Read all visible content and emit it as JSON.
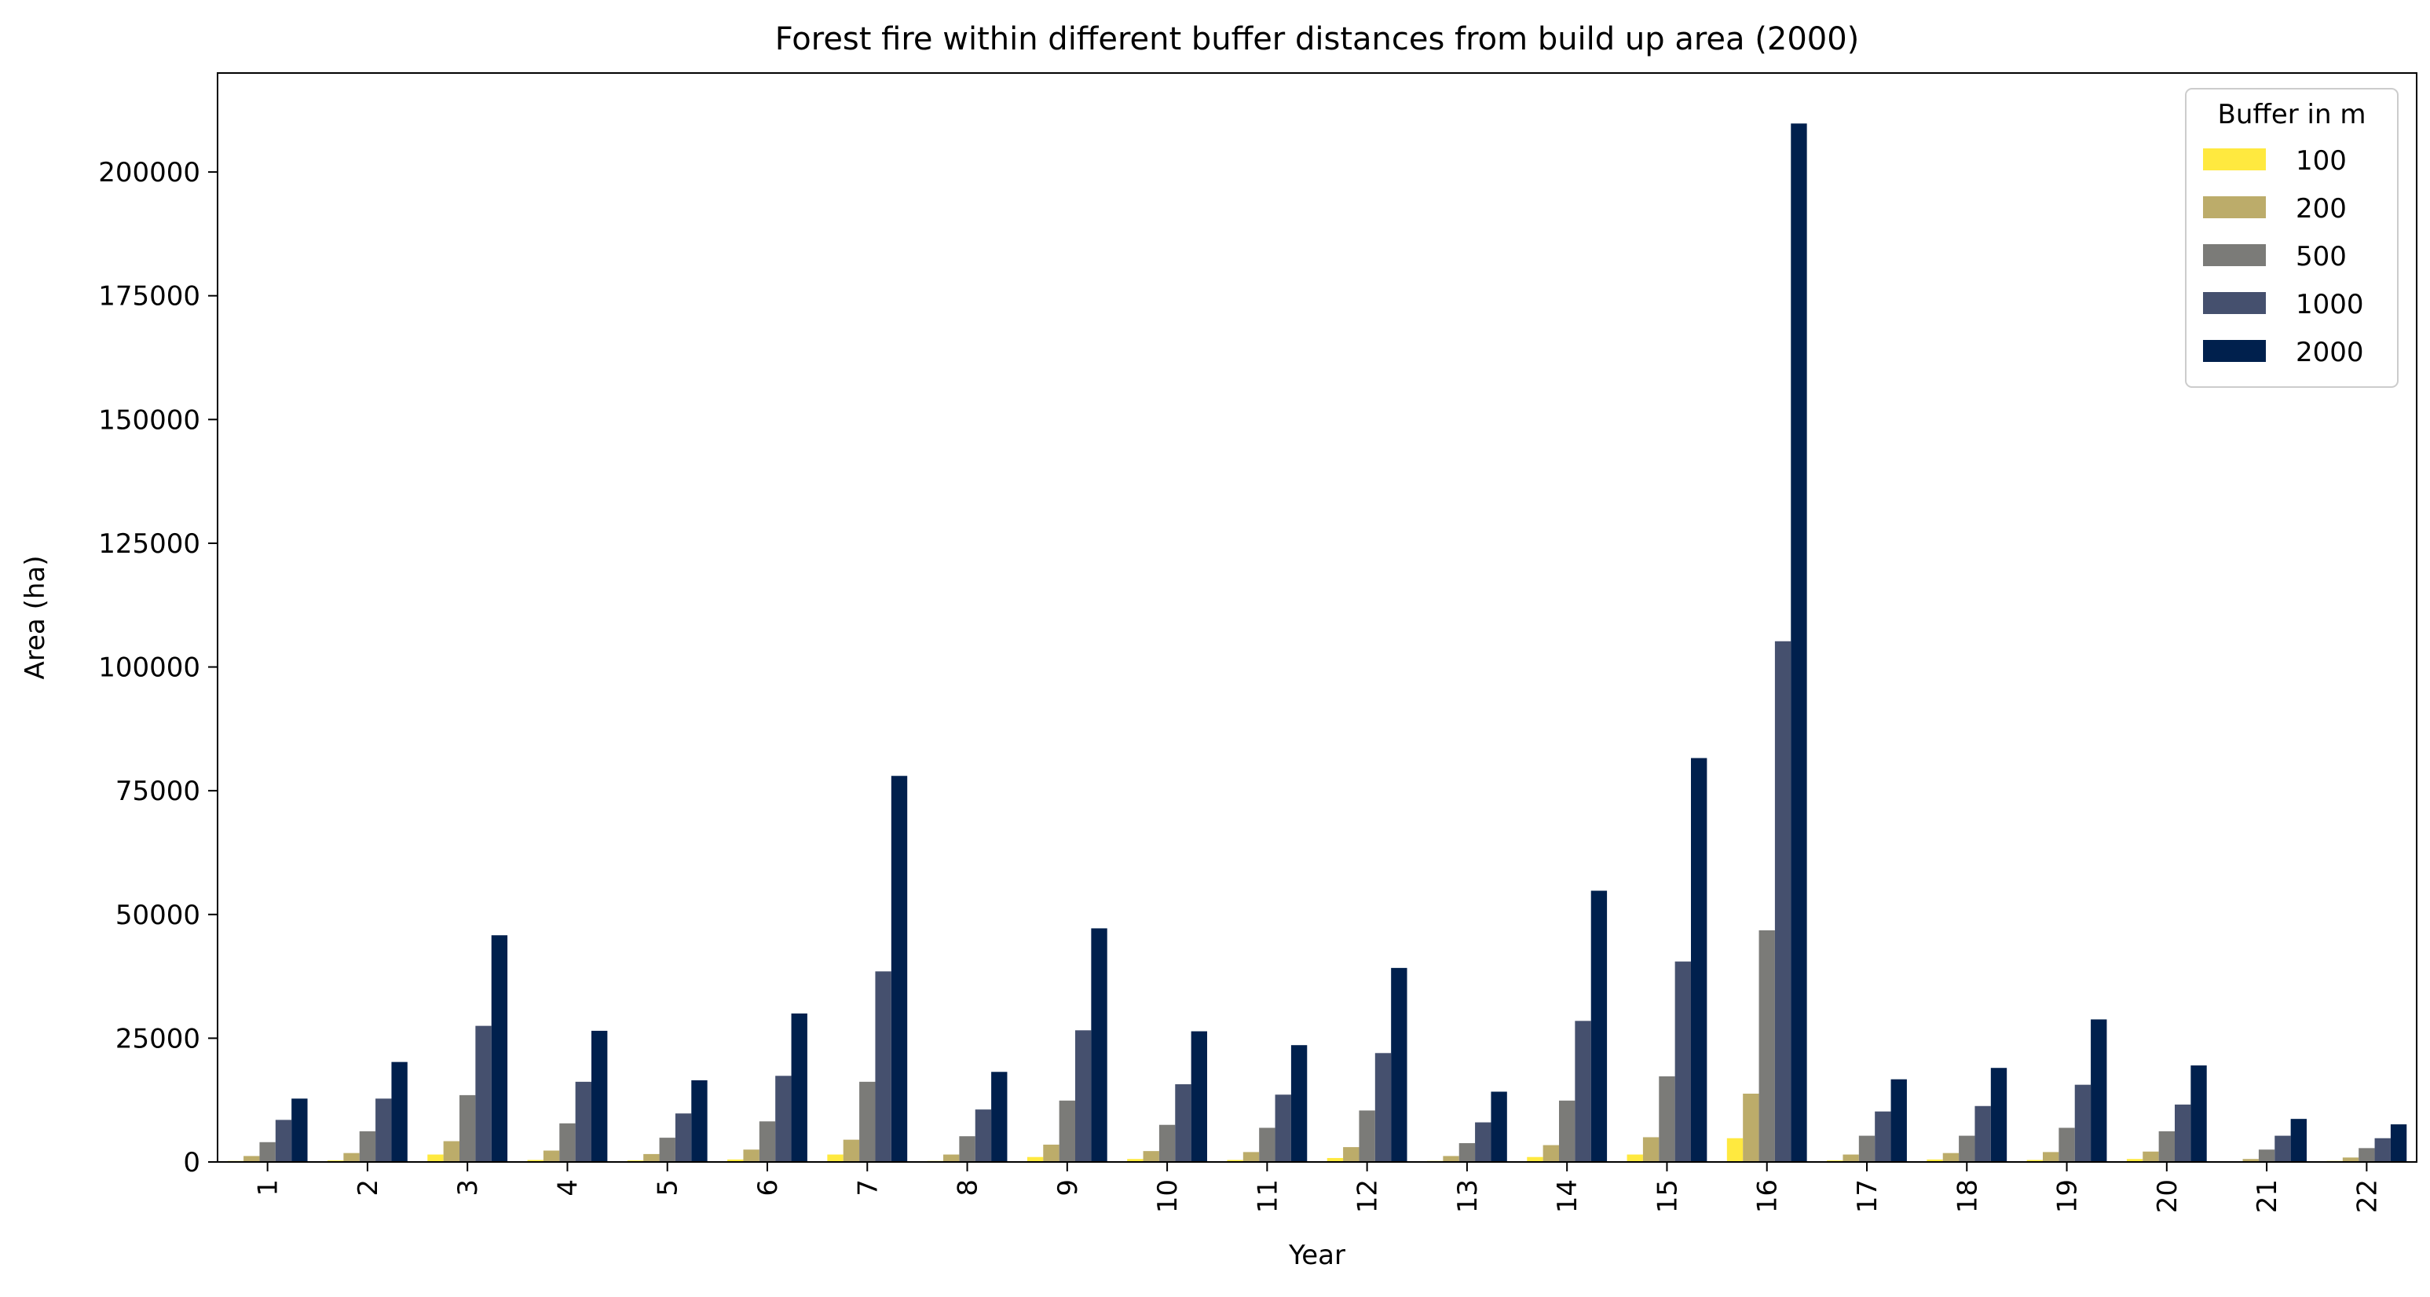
{
  "chart_data": {
    "type": "bar",
    "title": "Forest fire within different buffer distances from build up area (2000)",
    "xlabel": "Year",
    "ylabel": "Area (ha)",
    "ylim": [
      0,
      220000
    ],
    "yticks": [
      0,
      25000,
      50000,
      75000,
      100000,
      125000,
      150000,
      175000,
      200000
    ],
    "categories": [
      "1",
      "2",
      "3",
      "4",
      "5",
      "6",
      "7",
      "8",
      "9",
      "10",
      "11",
      "12",
      "13",
      "14",
      "15",
      "16",
      "17",
      "18",
      "19",
      "20",
      "21",
      "22"
    ],
    "legend": {
      "title": "Buffer in m",
      "position": "top-right"
    },
    "grid": false,
    "series": [
      {
        "name": "100",
        "color": "#ffe93f",
        "values": [
          200,
          300,
          1500,
          400,
          300,
          500,
          1500,
          200,
          1000,
          600,
          400,
          800,
          200,
          1000,
          1500,
          4800,
          300,
          500,
          400,
          600,
          100,
          200
        ]
      },
      {
        "name": "200",
        "color": "#bcac6a",
        "values": [
          1200,
          1800,
          4200,
          2300,
          1600,
          2500,
          4500,
          1500,
          3500,
          2200,
          2000,
          3000,
          1200,
          3400,
          5000,
          13800,
          1500,
          1800,
          2000,
          2100,
          600,
          900
        ]
      },
      {
        "name": "500",
        "color": "#7b7b78",
        "values": [
          4000,
          6200,
          13500,
          7800,
          4900,
          8200,
          16200,
          5200,
          12400,
          7500,
          6900,
          10400,
          3800,
          12400,
          17300,
          46800,
          5300,
          5300,
          6900,
          6200,
          2500,
          2800
        ]
      },
      {
        "name": "1000",
        "color": "#45506e",
        "values": [
          8500,
          12800,
          27500,
          16200,
          9800,
          17400,
          38500,
          10600,
          26600,
          15700,
          13600,
          22000,
          8000,
          28500,
          40500,
          105200,
          10200,
          11300,
          15600,
          11600,
          5300,
          4800
        ]
      },
      {
        "name": "2000",
        "color": "#00204d",
        "values": [
          12800,
          20200,
          45800,
          26500,
          16500,
          30000,
          78000,
          18200,
          47200,
          26400,
          23600,
          39200,
          14200,
          54800,
          81600,
          209800,
          16700,
          19000,
          28800,
          19500,
          8700,
          7600
        ]
      }
    ]
  }
}
